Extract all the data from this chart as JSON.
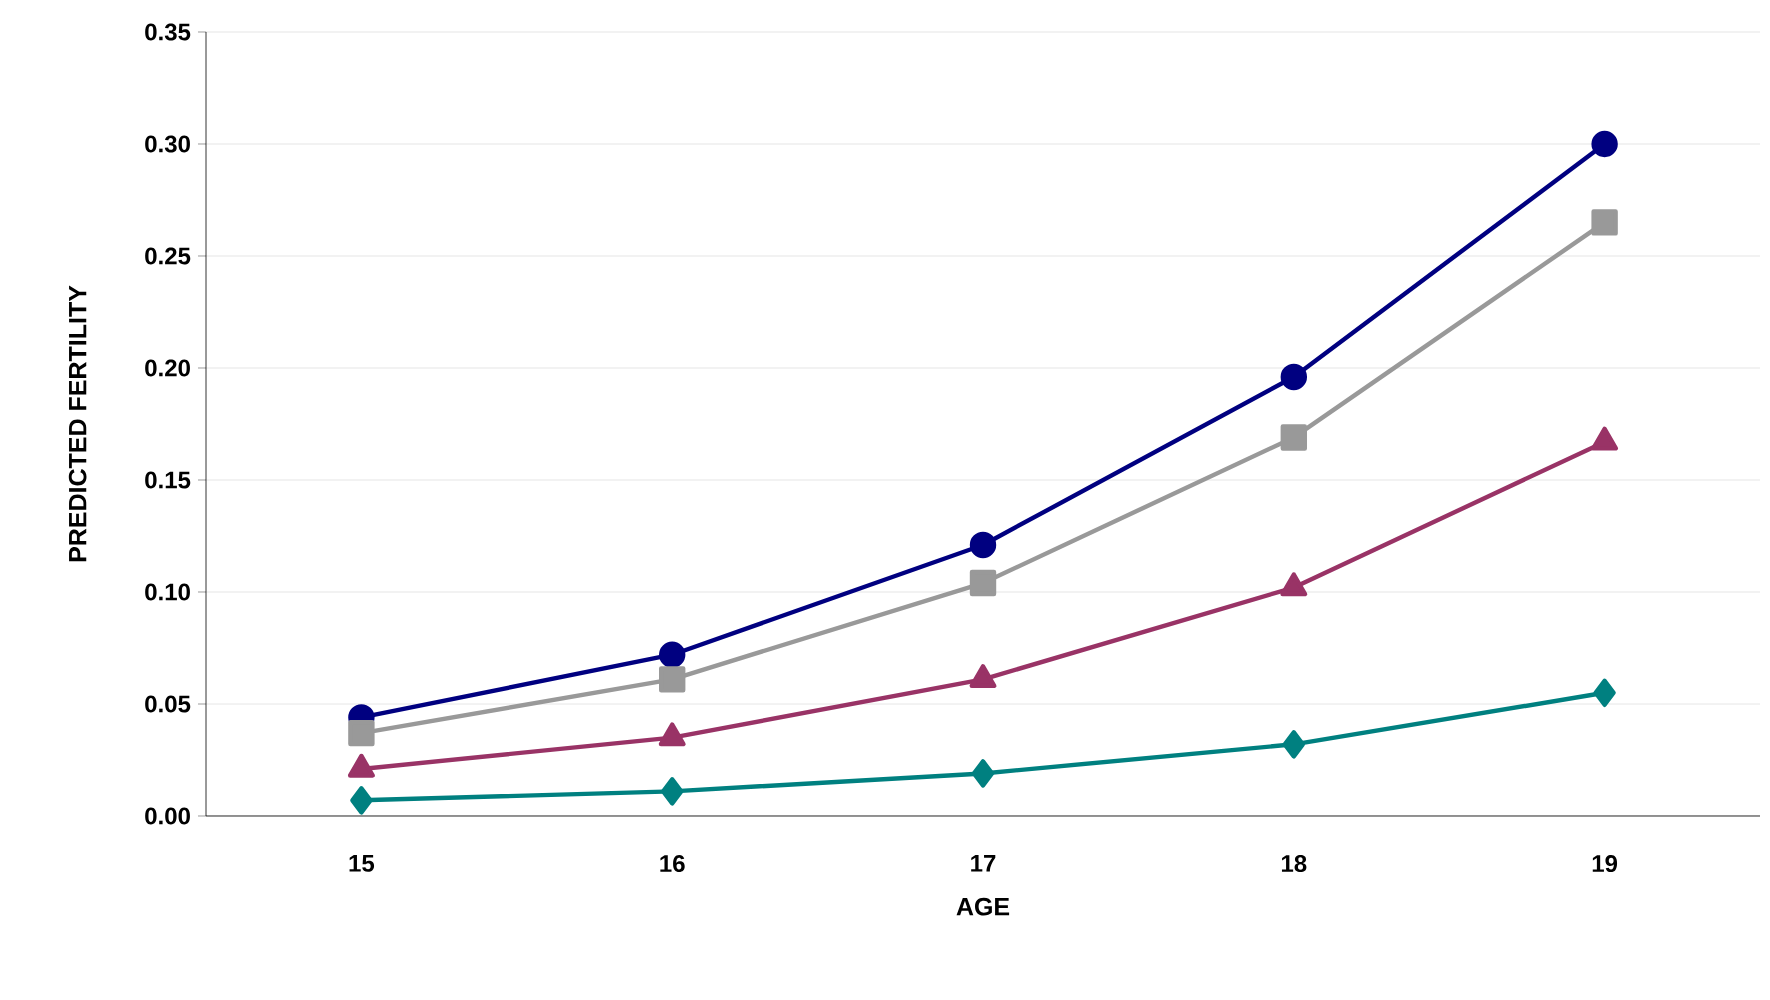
{
  "chart_data": {
    "type": "line",
    "xlabel": "AGE",
    "ylabel": "PREDICTED FERTILITY",
    "categories": [
      "15",
      "16",
      "17",
      "18",
      "19"
    ],
    "series": [
      {
        "color": "#000080",
        "marker": "circle",
        "values": [
          0.044,
          0.072,
          0.121,
          0.196,
          0.3
        ]
      },
      {
        "color": "#999999",
        "marker": "square",
        "values": [
          0.037,
          0.061,
          0.104,
          0.169,
          0.265
        ]
      },
      {
        "color": "#993366",
        "marker": "triangle",
        "values": [
          0.021,
          0.035,
          0.061,
          0.102,
          0.167
        ]
      },
      {
        "color": "#008080",
        "marker": "diamond",
        "values": [
          0.007,
          0.011,
          0.019,
          0.032,
          0.055
        ]
      }
    ],
    "ylim": [
      0,
      0.35
    ],
    "yticks": [
      {
        "value": 0,
        "label": "0.00"
      },
      {
        "value": 0.05,
        "label": "0.05"
      },
      {
        "value": 0.1,
        "label": "0.10"
      },
      {
        "value": 0.15,
        "label": "0.15"
      },
      {
        "value": 0.2,
        "label": "0.20"
      },
      {
        "value": 0.25,
        "label": "0.25"
      },
      {
        "value": 0.3,
        "label": "0.30"
      },
      {
        "value": 0.35,
        "label": "0.35"
      }
    ],
    "grid": "y",
    "line_style": "solid"
  }
}
